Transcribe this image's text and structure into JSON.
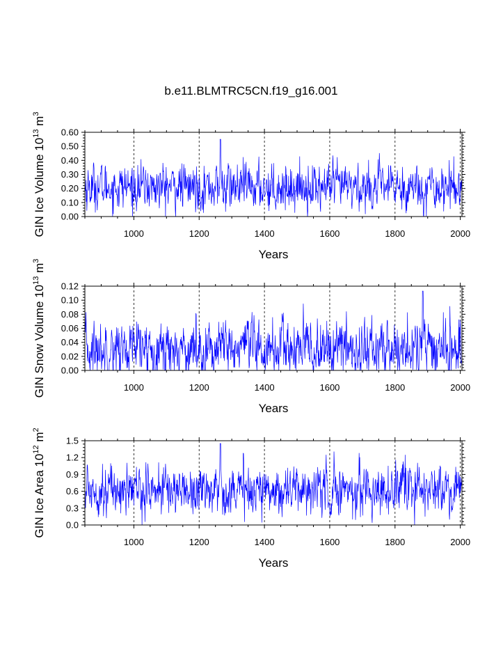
{
  "title": "b.e11.BLMTRC5CN.f19_g16.001",
  "colors": {
    "series": "#0000ff",
    "axis": "#000000"
  },
  "chart_data": [
    {
      "type": "line",
      "panel": "ice-volume",
      "title": "",
      "xlabel": "Years",
      "ylabel_main": "GIN Ice Volume 10",
      "ylabel_sup": "13",
      "ylabel_unit": " m",
      "ylabel_unit_sup": "3",
      "xlim": [
        850,
        2005
      ],
      "ylim": [
        0.0,
        0.6
      ],
      "xticks": [
        1000,
        1200,
        1400,
        1600,
        1800,
        2000
      ],
      "xticklabels": [
        "1000",
        "1200",
        "1400",
        "1600",
        "1800",
        "2000"
      ],
      "yticks": [
        0.0,
        0.1,
        0.2,
        0.3,
        0.4,
        0.5,
        0.6
      ],
      "yticklabels": [
        "0.00",
        "0.10",
        "0.20",
        "0.30",
        "0.40",
        "0.50",
        "0.60"
      ],
      "grid": "vertical dashed at x ticks",
      "series_summary": {
        "mean": 0.21,
        "typical_min": 0.06,
        "typical_max": 0.38,
        "max_peak": 0.55,
        "max_peak_year": 1265,
        "approx_points": 1156
      }
    },
    {
      "type": "line",
      "panel": "snow-volume",
      "title": "",
      "xlabel": "Years",
      "ylabel_main": "GIN Snow Volume 10",
      "ylabel_sup": "13",
      "ylabel_unit": " m",
      "ylabel_unit_sup": "3",
      "xlim": [
        850,
        2005
      ],
      "ylim": [
        0.0,
        0.12
      ],
      "xticks": [
        1000,
        1200,
        1400,
        1600,
        1800,
        2000
      ],
      "xticklabels": [
        "1000",
        "1200",
        "1400",
        "1600",
        "1800",
        "2000"
      ],
      "yticks": [
        0.0,
        0.02,
        0.04,
        0.06,
        0.08,
        0.1,
        0.12
      ],
      "yticklabels": [
        "0.00",
        "0.02",
        "0.04",
        "0.06",
        "0.08",
        "0.10",
        "0.12"
      ],
      "grid": "vertical dashed at x ticks",
      "series_summary": {
        "mean": 0.03,
        "typical_min": 0.0,
        "typical_max": 0.08,
        "max_peak": 0.113,
        "max_peak_year": 1885,
        "approx_points": 1156
      }
    },
    {
      "type": "line",
      "panel": "ice-area",
      "title": "",
      "xlabel": "Years",
      "ylabel_main": "GIN Ice Area 10",
      "ylabel_sup": "12",
      "ylabel_unit": " m",
      "ylabel_unit_sup": "2",
      "xlim": [
        850,
        2005
      ],
      "ylim": [
        0.0,
        1.5
      ],
      "xticks": [
        1000,
        1200,
        1400,
        1600,
        1800,
        2000
      ],
      "xticklabels": [
        "1000",
        "1200",
        "1400",
        "1600",
        "1800",
        "2000"
      ],
      "yticks": [
        0.0,
        0.3,
        0.6,
        0.9,
        1.2,
        1.5
      ],
      "yticklabels": [
        "0.0",
        "0.3",
        "0.6",
        "0.9",
        "1.2",
        "1.5"
      ],
      "grid": "vertical dashed at x ticks",
      "series_summary": {
        "mean": 0.63,
        "typical_min": 0.2,
        "typical_max": 1.05,
        "max_peak": 1.45,
        "max_peak_year": 1265,
        "approx_points": 1156
      }
    }
  ]
}
